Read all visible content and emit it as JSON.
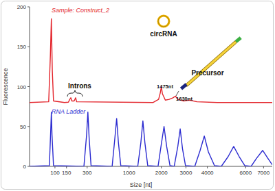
{
  "chart_data": {
    "type": "line",
    "xlabel": "Size [nt]",
    "ylabel": "Fluorescence",
    "xlim": [
      40,
      7500
    ],
    "xticks": [
      100,
      150,
      300,
      1000,
      2000,
      3000,
      4000,
      6000,
      7000
    ],
    "ylim": [
      0,
      200
    ],
    "yticks": [
      0,
      50,
      100,
      150,
      200
    ],
    "grid": false,
    "annotations": [
      "Introns",
      "circRNA",
      "1475nt",
      "Precursor",
      "1630nt"
    ],
    "series": [
      {
        "name": "Sample: Construct_2",
        "color": "#e3242b",
        "x": [
          40,
          80,
          85,
          88,
          91,
          95,
          140,
          160,
          168,
          174,
          180,
          195,
          205,
          212,
          1700,
          1900,
          1960,
          2000,
          2040,
          2150,
          2300,
          2450,
          2550,
          2650,
          2900,
          3150,
          3500,
          4500,
          7500
        ],
        "values": [
          80,
          81,
          140,
          185,
          120,
          82,
          80,
          80.5,
          84,
          86,
          82,
          82,
          86,
          81,
          80,
          84,
          92,
          100,
          91,
          83,
          84,
          86,
          88,
          84,
          82,
          83,
          81,
          80,
          80
        ]
      },
      {
        "name": "RNA Ladder",
        "color": "#2b2bd0",
        "x": [
          40,
          82,
          86,
          88,
          90,
          95,
          270,
          295,
          307,
          320,
          340,
          640,
          690,
          725,
          760,
          810,
          1230,
          1320,
          1380,
          1440,
          1530,
          1880,
          2000,
          2100,
          2200,
          2330,
          2500,
          2650,
          2750,
          2850,
          2980,
          3400,
          3650,
          3850,
          4050,
          4350,
          4700,
          5050,
          5350,
          5650,
          5950,
          6300,
          6600,
          6950,
          7250,
          7500
        ],
        "values": [
          0,
          1,
          45,
          68,
          40,
          1,
          0,
          40,
          68,
          35,
          1,
          0,
          35,
          60,
          30,
          1,
          0,
          30,
          57,
          30,
          1,
          0,
          28,
          50,
          25,
          1,
          0,
          25,
          47,
          22,
          1,
          0,
          20,
          38,
          18,
          1,
          0,
          12,
          25,
          12,
          1,
          0,
          10,
          20,
          10,
          2
        ]
      }
    ]
  }
}
